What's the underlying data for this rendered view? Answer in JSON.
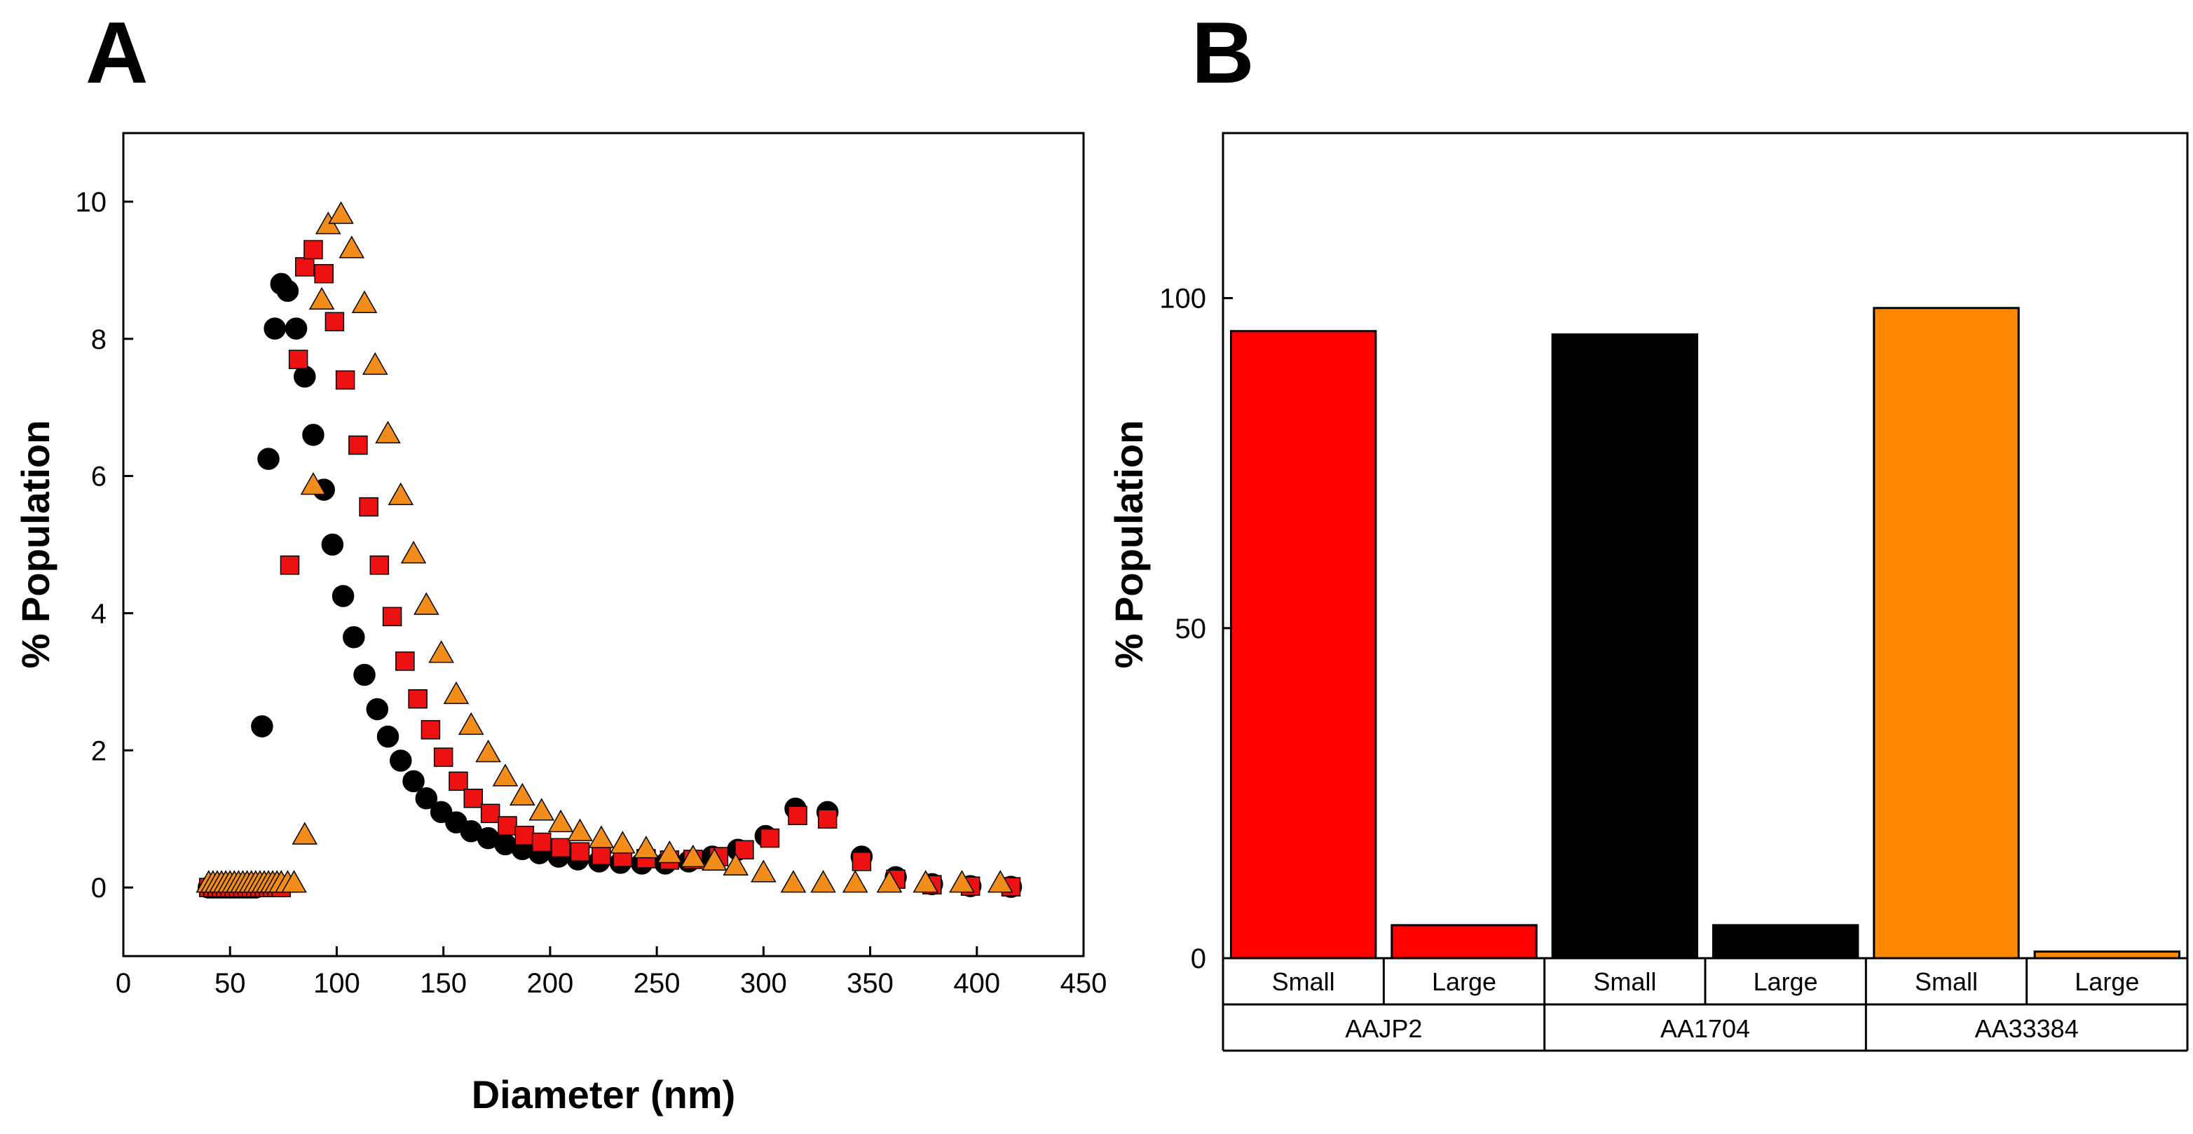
{
  "chart_data": [
    {
      "panel_label": "A",
      "type": "scatter",
      "xlabel": "Diameter (nm)",
      "ylabel": "% Population",
      "xlim": [
        0,
        450
      ],
      "ylim": [
        -1,
        11
      ],
      "x_ticks": [
        0,
        50,
        100,
        150,
        200,
        250,
        300,
        350,
        400,
        450
      ],
      "y_ticks": [
        0,
        2,
        4,
        6,
        8,
        10
      ],
      "grid": false,
      "series": [
        {
          "name": "AA1704",
          "color": "#000000",
          "marker": "circle",
          "points": [
            [
              40,
              0
            ],
            [
              42,
              0
            ],
            [
              44,
              0
            ],
            [
              46,
              0
            ],
            [
              48,
              0
            ],
            [
              50,
              0
            ],
            [
              52,
              0
            ],
            [
              54,
              0
            ],
            [
              56,
              0
            ],
            [
              58,
              0
            ],
            [
              60,
              0
            ],
            [
              62,
              0
            ],
            [
              65,
              2.35
            ],
            [
              68,
              6.25
            ],
            [
              71,
              8.15
            ],
            [
              74,
              8.8
            ],
            [
              77,
              8.7
            ],
            [
              81,
              8.15
            ],
            [
              85,
              7.45
            ],
            [
              89,
              6.6
            ],
            [
              94,
              5.8
            ],
            [
              98,
              5.0
            ],
            [
              103,
              4.25
            ],
            [
              108,
              3.65
            ],
            [
              113,
              3.1
            ],
            [
              119,
              2.6
            ],
            [
              124,
              2.2
            ],
            [
              130,
              1.85
            ],
            [
              136,
              1.55
            ],
            [
              142,
              1.3
            ],
            [
              149,
              1.1
            ],
            [
              156,
              0.95
            ],
            [
              163,
              0.82
            ],
            [
              171,
              0.72
            ],
            [
              179,
              0.63
            ],
            [
              187,
              0.56
            ],
            [
              195,
              0.5
            ],
            [
              204,
              0.45
            ],
            [
              213,
              0.41
            ],
            [
              223,
              0.38
            ],
            [
              233,
              0.36
            ],
            [
              243,
              0.35
            ],
            [
              254,
              0.35
            ],
            [
              265,
              0.38
            ],
            [
              276,
              0.45
            ],
            [
              288,
              0.55
            ],
            [
              301,
              0.75
            ],
            [
              315,
              1.15
            ],
            [
              330,
              1.1
            ],
            [
              346,
              0.45
            ],
            [
              362,
              0.15
            ],
            [
              379,
              0.05
            ],
            [
              397,
              0.02
            ],
            [
              416,
              0.01
            ]
          ]
        },
        {
          "name": "AAJP2",
          "color": "#ee1111",
          "marker": "square",
          "points": [
            [
              40,
              0
            ],
            [
              42,
              0
            ],
            [
              44,
              0
            ],
            [
              46,
              0
            ],
            [
              48,
              0
            ],
            [
              50,
              0
            ],
            [
              52,
              0
            ],
            [
              54,
              0
            ],
            [
              56,
              0
            ],
            [
              58,
              0
            ],
            [
              60,
              0
            ],
            [
              62,
              0
            ],
            [
              64,
              0
            ],
            [
              66,
              0
            ],
            [
              68,
              0
            ],
            [
              70,
              0
            ],
            [
              72,
              0
            ],
            [
              74,
              0
            ],
            [
              78,
              4.7
            ],
            [
              82,
              7.7
            ],
            [
              85,
              9.05
            ],
            [
              89,
              9.3
            ],
            [
              94,
              8.95
            ],
            [
              99,
              8.25
            ],
            [
              104,
              7.4
            ],
            [
              110,
              6.45
            ],
            [
              115,
              5.55
            ],
            [
              120,
              4.7
            ],
            [
              126,
              3.95
            ],
            [
              132,
              3.3
            ],
            [
              138,
              2.75
            ],
            [
              144,
              2.3
            ],
            [
              150,
              1.9
            ],
            [
              157,
              1.55
            ],
            [
              164,
              1.3
            ],
            [
              172,
              1.08
            ],
            [
              180,
              0.9
            ],
            [
              188,
              0.76
            ],
            [
              196,
              0.66
            ],
            [
              205,
              0.58
            ],
            [
              214,
              0.52
            ],
            [
              224,
              0.47
            ],
            [
              234,
              0.44
            ],
            [
              245,
              0.42
            ],
            [
              256,
              0.4
            ],
            [
              267,
              0.41
            ],
            [
              279,
              0.45
            ],
            [
              291,
              0.55
            ],
            [
              303,
              0.72
            ],
            [
              316,
              1.05
            ],
            [
              330,
              1.0
            ],
            [
              346,
              0.38
            ],
            [
              362,
              0.12
            ],
            [
              379,
              0.04
            ],
            [
              397,
              0.02
            ],
            [
              416,
              0.01
            ]
          ]
        },
        {
          "name": "AA33384",
          "color": "#f28c1a",
          "marker": "triangle",
          "points": [
            [
              40,
              0.05
            ],
            [
              42,
              0.05
            ],
            [
              44,
              0.05
            ],
            [
              46,
              0.05
            ],
            [
              48,
              0.05
            ],
            [
              50,
              0.05
            ],
            [
              52,
              0.05
            ],
            [
              54,
              0.05
            ],
            [
              56,
              0.05
            ],
            [
              58,
              0.05
            ],
            [
              60,
              0.05
            ],
            [
              62,
              0.05
            ],
            [
              64,
              0.05
            ],
            [
              66,
              0.05
            ],
            [
              68,
              0.05
            ],
            [
              70,
              0.05
            ],
            [
              72,
              0.05
            ],
            [
              74,
              0.05
            ],
            [
              77,
              0.05
            ],
            [
              80,
              0.05
            ],
            [
              85,
              0.75
            ],
            [
              89,
              5.85
            ],
            [
              93,
              8.55
            ],
            [
              96,
              9.65
            ],
            [
              102,
              9.8
            ],
            [
              107,
              9.3
            ],
            [
              113,
              8.5
            ],
            [
              118,
              7.6
            ],
            [
              124,
              6.6
            ],
            [
              130,
              5.7
            ],
            [
              136,
              4.85
            ],
            [
              142,
              4.1
            ],
            [
              149,
              3.4
            ],
            [
              156,
              2.8
            ],
            [
              163,
              2.35
            ],
            [
              171,
              1.95
            ],
            [
              179,
              1.6
            ],
            [
              187,
              1.32
            ],
            [
              196,
              1.1
            ],
            [
              205,
              0.93
            ],
            [
              214,
              0.8
            ],
            [
              224,
              0.7
            ],
            [
              234,
              0.62
            ],
            [
              245,
              0.55
            ],
            [
              256,
              0.48
            ],
            [
              267,
              0.42
            ],
            [
              277,
              0.37
            ],
            [
              287,
              0.3
            ],
            [
              300,
              0.2
            ],
            [
              314,
              0.05
            ],
            [
              328,
              0.05
            ],
            [
              343,
              0.05
            ],
            [
              359,
              0.05
            ],
            [
              376,
              0.05
            ],
            [
              393,
              0.05
            ],
            [
              411,
              0.05
            ]
          ]
        }
      ]
    },
    {
      "panel_label": "B",
      "type": "bar",
      "ylabel": "% Population",
      "ylim": [
        0,
        125
      ],
      "y_ticks": [
        0,
        50,
        100
      ],
      "grid": false,
      "groups": [
        "AAJP2",
        "AA1704",
        "AA33384"
      ],
      "group_colors": [
        "#ff0000",
        "#000000",
        "#ff8800"
      ],
      "categories": [
        "Small",
        "Large",
        "Small",
        "Large",
        "Small",
        "Large"
      ],
      "values": [
        95,
        5,
        94.5,
        5,
        98.5,
        1
      ]
    }
  ]
}
